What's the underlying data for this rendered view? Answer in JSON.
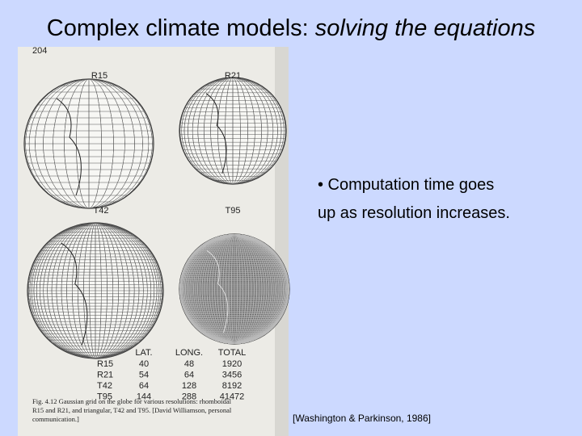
{
  "title": {
    "plain": "Complex climate models:",
    "italic": "solving the equations"
  },
  "figure": {
    "page_number": "204",
    "globes": [
      "R15",
      "R21",
      "T42",
      "T95"
    ],
    "table": {
      "header": [
        "LAT.",
        "LONG.",
        "TOTAL"
      ],
      "rows": [
        [
          "R15",
          "40",
          "48",
          "1920"
        ],
        [
          "R21",
          "54",
          "64",
          "3456"
        ],
        [
          "T42",
          "64",
          "128",
          "8192"
        ],
        [
          "T95",
          "144",
          "288",
          "41472"
        ]
      ]
    },
    "caption": [
      "Fig. 4.12  Gaussian grid on the globe for various resolutions: rhomboidal",
      "R15 and R21, and triangular, T42 and T95. [David Williamson, personal",
      "communication.]"
    ]
  },
  "bullet": [
    "• Computation time goes",
    "up as resolution increases."
  ],
  "citation": "[Washington & Parkinson, 1986]"
}
